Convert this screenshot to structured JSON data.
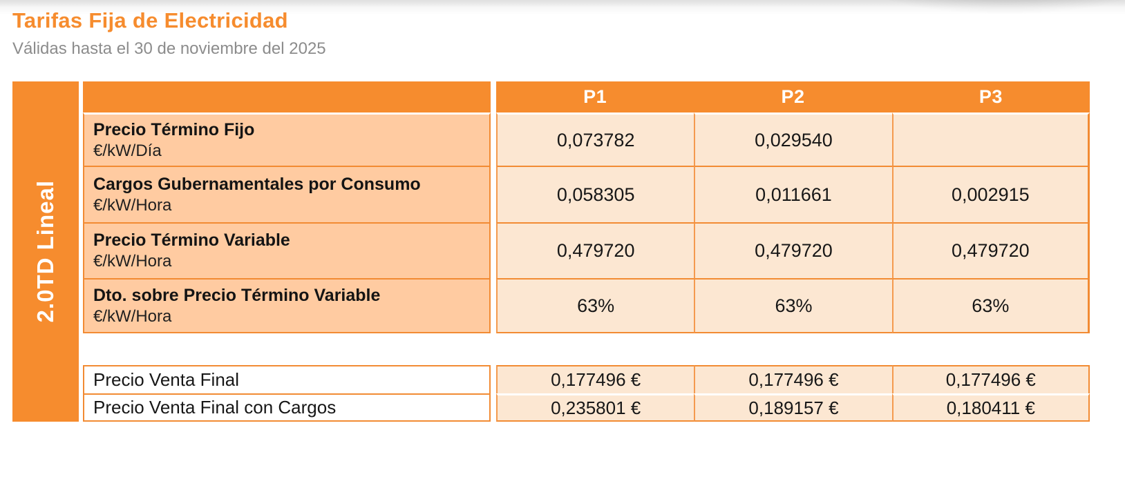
{
  "page": {
    "title": "Tarifas Fija de Electricidad",
    "subtitle": "Válidas hasta el 30 de noviembre del 2025"
  },
  "colors": {
    "brand_orange": "#f68c2e",
    "label_cell_peach": "#ffcba1",
    "value_cell_peach": "#fce7d2",
    "subtitle_gray": "#8c8c8c",
    "border_orange": "#f28b33",
    "header_text": "#ffffff",
    "body_text": "#1a1a1a"
  },
  "table": {
    "group_label": "2.0TD Lineal",
    "columns": [
      "P1",
      "P2",
      "P3"
    ],
    "rows": [
      {
        "label": "Precio Término Fijo",
        "unit": "€/kW/Día",
        "values": [
          "0,073782",
          "0,029540",
          ""
        ]
      },
      {
        "label": "Cargos Gubernamentales por Consumo",
        "unit": "€/kW/Hora",
        "values": [
          "0,058305",
          "0,011661",
          "0,002915"
        ]
      },
      {
        "label": "Precio Término Variable",
        "unit": "€/kW/Hora",
        "values": [
          "0,479720",
          "0,479720",
          "0,479720"
        ]
      },
      {
        "label": "Dto. sobre Precio Término Variable",
        "unit": "€/kW/Hora",
        "values": [
          "63%",
          "63%",
          "63%"
        ]
      }
    ],
    "summary_rows": [
      {
        "label": "Precio Venta Final",
        "values": [
          "0,177496 €",
          "0,177496 €",
          "0,177496 €"
        ]
      },
      {
        "label": "Precio Venta Final con Cargos",
        "values": [
          "0,235801 €",
          "0,189157 €",
          "0,180411 €"
        ]
      }
    ]
  }
}
